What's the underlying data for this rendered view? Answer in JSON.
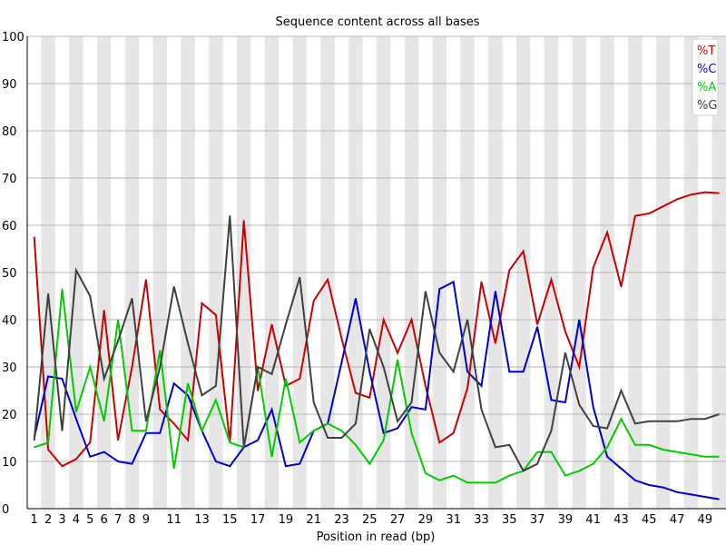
{
  "chart_data": {
    "type": "line",
    "title": "Sequence content across all bases",
    "xlabel": "Position in read (bp)",
    "ylabel": "",
    "ylim": [
      0,
      100
    ],
    "yticks": [
      0,
      10,
      20,
      30,
      40,
      50,
      60,
      70,
      80,
      90,
      100
    ],
    "x": [
      1,
      2,
      3,
      4,
      5,
      6,
      7,
      8,
      9,
      10,
      11,
      12,
      13,
      14,
      15,
      16,
      17,
      18,
      19,
      20,
      21,
      22,
      23,
      24,
      25,
      26,
      27,
      28,
      29,
      30,
      31,
      32,
      33,
      34,
      35,
      36,
      37,
      38,
      39,
      40,
      41,
      42,
      43,
      44,
      45,
      46,
      47,
      48,
      49,
      50
    ],
    "xtick_labels": [
      "1",
      "2",
      "3",
      "4",
      "5",
      "6",
      "7",
      "8",
      "9",
      "11",
      "13",
      "15",
      "17",
      "19",
      "21",
      "23",
      "25",
      "27",
      "29",
      "31",
      "33",
      "35",
      "37",
      "39",
      "41",
      "43",
      "45",
      "47",
      "49"
    ],
    "xtick_positions": [
      1,
      2,
      3,
      4,
      5,
      6,
      7,
      8,
      9,
      11,
      13,
      15,
      17,
      19,
      21,
      23,
      25,
      27,
      29,
      31,
      33,
      35,
      37,
      39,
      41,
      43,
      45,
      47,
      49
    ],
    "grid": "alternating vertical bands",
    "legend_position": "top-right",
    "series": [
      {
        "name": "%T",
        "color": "#cc0000",
        "values": [
          57.5,
          12.5,
          9,
          10.5,
          14,
          42,
          14.5,
          30,
          48.5,
          21,
          18,
          14.5,
          43.5,
          41,
          14,
          61,
          25,
          39,
          26,
          27.5,
          44,
          48.5,
          36,
          24.5,
          23.5,
          40,
          33,
          40,
          26,
          14,
          16,
          25.5,
          48,
          35,
          50.5,
          54.5,
          39,
          48.5,
          37.5,
          30,
          51,
          58.5,
          47,
          62,
          62.5,
          64,
          65.5,
          66.5,
          67,
          66.8
        ]
      },
      {
        "name": "%C",
        "color": "#0000cc",
        "values": [
          15,
          28,
          27.5,
          19,
          11,
          12,
          10,
          9.5,
          16,
          16,
          26.5,
          24,
          16.5,
          10,
          9,
          13,
          14.5,
          21,
          9,
          9.5,
          16.5,
          18,
          31,
          44.5,
          29,
          16,
          17,
          21.5,
          21,
          46.5,
          48,
          29,
          26,
          46,
          29,
          29,
          38.5,
          23,
          22.5,
          40,
          21.5,
          11,
          8.5,
          6,
          5,
          4.5,
          3.5,
          3,
          2.5,
          2
        ]
      },
      {
        "name": "%A",
        "color": "#00cc00",
        "values": [
          13,
          14,
          46.5,
          20.5,
          30,
          18.5,
          40,
          16.5,
          16.5,
          33.5,
          8.5,
          26.5,
          16.5,
          23,
          14,
          13,
          30,
          11,
          27.5,
          14,
          16.5,
          18,
          16.5,
          13.5,
          9.5,
          14.5,
          31.5,
          16,
          7.5,
          6,
          7,
          5.5,
          5.5,
          5.5,
          7,
          8,
          12,
          12,
          7,
          8,
          9.5,
          13,
          19,
          13.5,
          13.5,
          12.5,
          12,
          11.5,
          11,
          11
        ]
      },
      {
        "name": "%G",
        "color": "#404040",
        "values": [
          14.5,
          45.5,
          16.5,
          50.5,
          45,
          27.5,
          35.5,
          44.5,
          18.5,
          30,
          47,
          35,
          24,
          26,
          62,
          13,
          30,
          28.5,
          39,
          49,
          22.5,
          15,
          15,
          18,
          38,
          30,
          18.5,
          22.5,
          46,
          33,
          29,
          40,
          21,
          13,
          13.5,
          8,
          9.5,
          16.5,
          33,
          22,
          17.5,
          17,
          25,
          18,
          18.5,
          18.5,
          18.5,
          19,
          19,
          20
        ]
      }
    ]
  }
}
